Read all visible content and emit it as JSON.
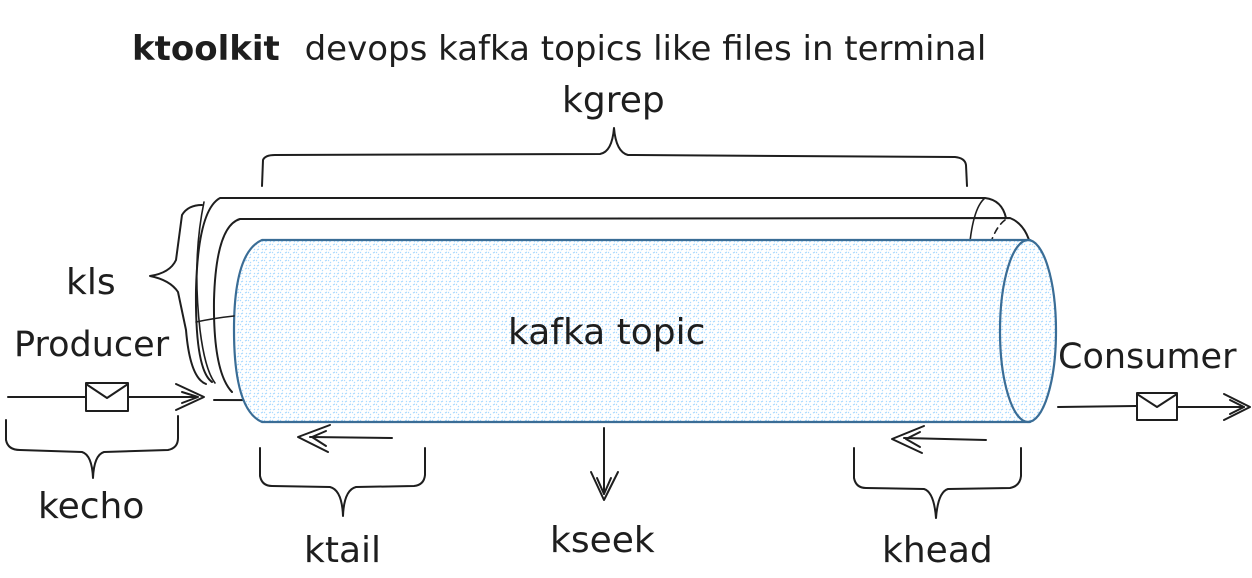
{
  "title": {
    "bold": "ktoolkit",
    "rest": "devops kafka topics like files in terminal"
  },
  "labels": {
    "kgrep": "kgrep",
    "kls": "kls",
    "producer": "Producer",
    "consumer": "Consumer",
    "kecho": "kecho",
    "ktail": "ktail",
    "kseek": "kseek",
    "khead": "khead",
    "topic": "kafka topic"
  },
  "colors": {
    "ink": "#1e1e1e",
    "topic_fill": "#a5d8ff",
    "topic_stroke": "#3a6d96"
  },
  "icons": {
    "message": "envelope-icon",
    "arrow": "arrow-icon"
  }
}
